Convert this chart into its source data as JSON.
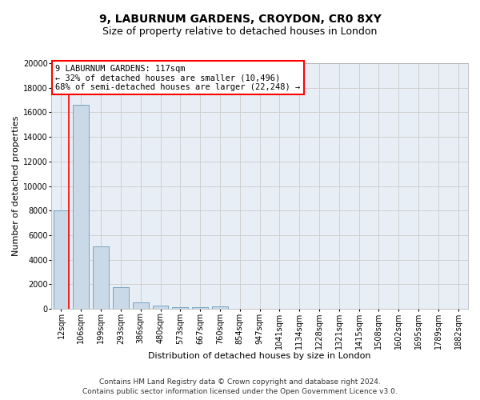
{
  "title1": "9, LABURNUM GARDENS, CROYDON, CR0 8XY",
  "title2": "Size of property relative to detached houses in London",
  "xlabel": "Distribution of detached houses by size in London",
  "ylabel": "Number of detached properties",
  "categories": [
    "12sqm",
    "106sqm",
    "199sqm",
    "293sqm",
    "386sqm",
    "480sqm",
    "573sqm",
    "667sqm",
    "760sqm",
    "854sqm",
    "947sqm",
    "1041sqm",
    "1134sqm",
    "1228sqm",
    "1321sqm",
    "1415sqm",
    "1508sqm",
    "1602sqm",
    "1695sqm",
    "1789sqm",
    "1882sqm"
  ],
  "values": [
    8050,
    16600,
    5100,
    1750,
    500,
    280,
    170,
    120,
    220,
    0,
    0,
    0,
    0,
    0,
    0,
    0,
    0,
    0,
    0,
    0,
    0
  ],
  "bar_color": "#c9d9e8",
  "bar_edge_color": "#6699bb",
  "grid_color": "#cccccc",
  "bg_color": "#e8eef5",
  "annotation_text": "9 LABURNUM GARDENS: 117sqm\n← 32% of detached houses are smaller (10,496)\n68% of semi-detached houses are larger (22,248) →",
  "annotation_box_color": "white",
  "annotation_edge_color": "red",
  "vline_color": "red",
  "ylim": [
    0,
    20000
  ],
  "yticks": [
    0,
    2000,
    4000,
    6000,
    8000,
    10000,
    12000,
    14000,
    16000,
    18000,
    20000
  ],
  "footer_line1": "Contains HM Land Registry data © Crown copyright and database right 2024.",
  "footer_line2": "Contains public sector information licensed under the Open Government Licence v3.0.",
  "title1_fontsize": 10,
  "title2_fontsize": 9,
  "xlabel_fontsize": 8,
  "ylabel_fontsize": 8,
  "tick_fontsize": 7,
  "annotation_fontsize": 7.5,
  "footer_fontsize": 6.5
}
